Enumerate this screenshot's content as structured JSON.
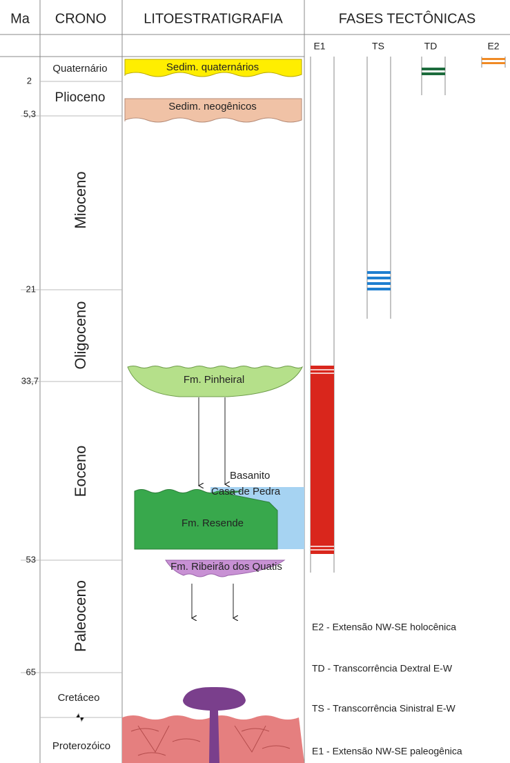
{
  "header": {
    "columns": [
      "Ma",
      "CRONO",
      "LITOESTRATIGRAFIA",
      "FASES TECTÔNICAS"
    ]
  },
  "phases": [
    {
      "label": "E1"
    },
    {
      "label": "TS"
    },
    {
      "label": "TD"
    },
    {
      "label": "E2"
    }
  ],
  "ages": [
    "2",
    "5,3",
    "21",
    "33,7",
    "53",
    "65"
  ],
  "epochs": [
    "Quaternário",
    "Plioceno",
    "Mioceno",
    "Oligoceno",
    "Eoceno",
    "Paleoceno",
    "Cretáceo",
    "Proterozóico"
  ],
  "units": [
    {
      "label": "Sedim. quaternários"
    },
    {
      "label": "Sedim. neogênicos"
    },
    {
      "label": "Fm. Pinheiral"
    },
    {
      "lines": [
        "Basanito",
        "Casa de Pedra"
      ]
    },
    {
      "label": "Fm. Resende"
    },
    {
      "label": "Fm. Ribeirão dos Quatis"
    }
  ],
  "legend": [
    "E2 - Extensão NW-SE holocênica",
    "TD - Transcorrência Dextral E-W",
    "TS - Transcorrência Sinistral E-W",
    "E1 - Extensão NW-SE paleogênica"
  ]
}
